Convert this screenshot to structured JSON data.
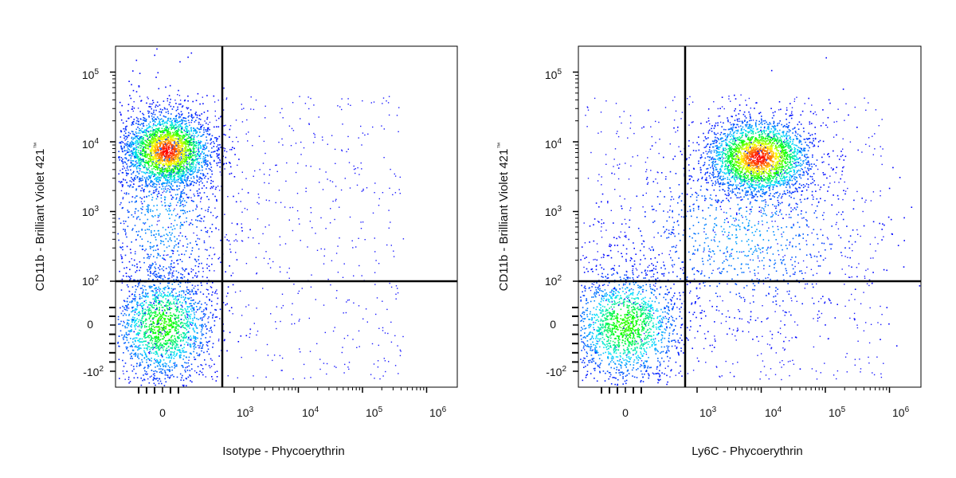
{
  "chart_data": [
    {
      "type": "scatter",
      "subtype": "flow-cytometry-density-dot-plot",
      "xlabel": "Isotype - Phycoerythrin",
      "ylabel": "CD11b - Brilliant Violet 421",
      "ylabel_mark": "™",
      "x_scale": "biexponential",
      "y_scale": "biexponential",
      "x_ticks": [
        {
          "value": "0",
          "label": "0"
        },
        {
          "value": "10^3",
          "base": "10",
          "exp": "3"
        },
        {
          "value": "10^4",
          "base": "10",
          "exp": "4"
        },
        {
          "value": "10^5",
          "base": "10",
          "exp": "5"
        },
        {
          "value": "10^6",
          "base": "10",
          "exp": "6"
        }
      ],
      "y_ticks": [
        {
          "value": "-10^2",
          "base": "-10",
          "exp": "2"
        },
        {
          "value": "0",
          "label": "0"
        },
        {
          "value": "10^2",
          "base": "10",
          "exp": "2"
        },
        {
          "value": "10^3",
          "base": "10",
          "exp": "3"
        },
        {
          "value": "10^4",
          "base": "10",
          "exp": "4"
        },
        {
          "value": "10^5",
          "base": "10",
          "exp": "5"
        }
      ],
      "quadrant_gate": {
        "x": 600,
        "y": 100
      },
      "populations": [
        {
          "x_center": 60,
          "y_center": 7500,
          "relative_density": "high",
          "color_peak": "red"
        },
        {
          "x_center": 0,
          "y_center": 0,
          "relative_density": "medium",
          "color_peak": "green"
        },
        {
          "x_center": 0,
          "y_center": 1000,
          "relative_density": "low",
          "color_peak": "blue"
        }
      ],
      "colormap": [
        "#0000ff",
        "#00e0ff",
        "#00ff00",
        "#ffff00",
        "#ff0000"
      ],
      "grid": false
    },
    {
      "type": "scatter",
      "subtype": "flow-cytometry-density-dot-plot",
      "xlabel": "Ly6C - Phycoerythrin",
      "ylabel": "CD11b - Brilliant Violet 421",
      "ylabel_mark": "™",
      "x_scale": "biexponential",
      "y_scale": "biexponential",
      "x_ticks": [
        {
          "value": "0",
          "label": "0"
        },
        {
          "value": "10^3",
          "base": "10",
          "exp": "3"
        },
        {
          "value": "10^4",
          "base": "10",
          "exp": "4"
        },
        {
          "value": "10^5",
          "base": "10",
          "exp": "5"
        },
        {
          "value": "10^6",
          "base": "10",
          "exp": "6"
        }
      ],
      "y_ticks": [
        {
          "value": "-10^2",
          "base": "-10",
          "exp": "2"
        },
        {
          "value": "0",
          "label": "0"
        },
        {
          "value": "10^2",
          "base": "10",
          "exp": "2"
        },
        {
          "value": "10^3",
          "base": "10",
          "exp": "3"
        },
        {
          "value": "10^4",
          "base": "10",
          "exp": "4"
        },
        {
          "value": "10^5",
          "base": "10",
          "exp": "5"
        }
      ],
      "quadrant_gate": {
        "x": 600,
        "y": 100
      },
      "populations": [
        {
          "x_center": 9000,
          "y_center": 6000,
          "relative_density": "high",
          "color_peak": "red"
        },
        {
          "x_center": 0,
          "y_center": 0,
          "relative_density": "medium",
          "color_peak": "green"
        },
        {
          "x_center": 5000,
          "y_center": 500,
          "relative_density": "low",
          "color_peak": "blue"
        }
      ],
      "colormap": [
        "#0000ff",
        "#00e0ff",
        "#00ff00",
        "#ffff00",
        "#ff0000"
      ],
      "grid": false
    }
  ]
}
